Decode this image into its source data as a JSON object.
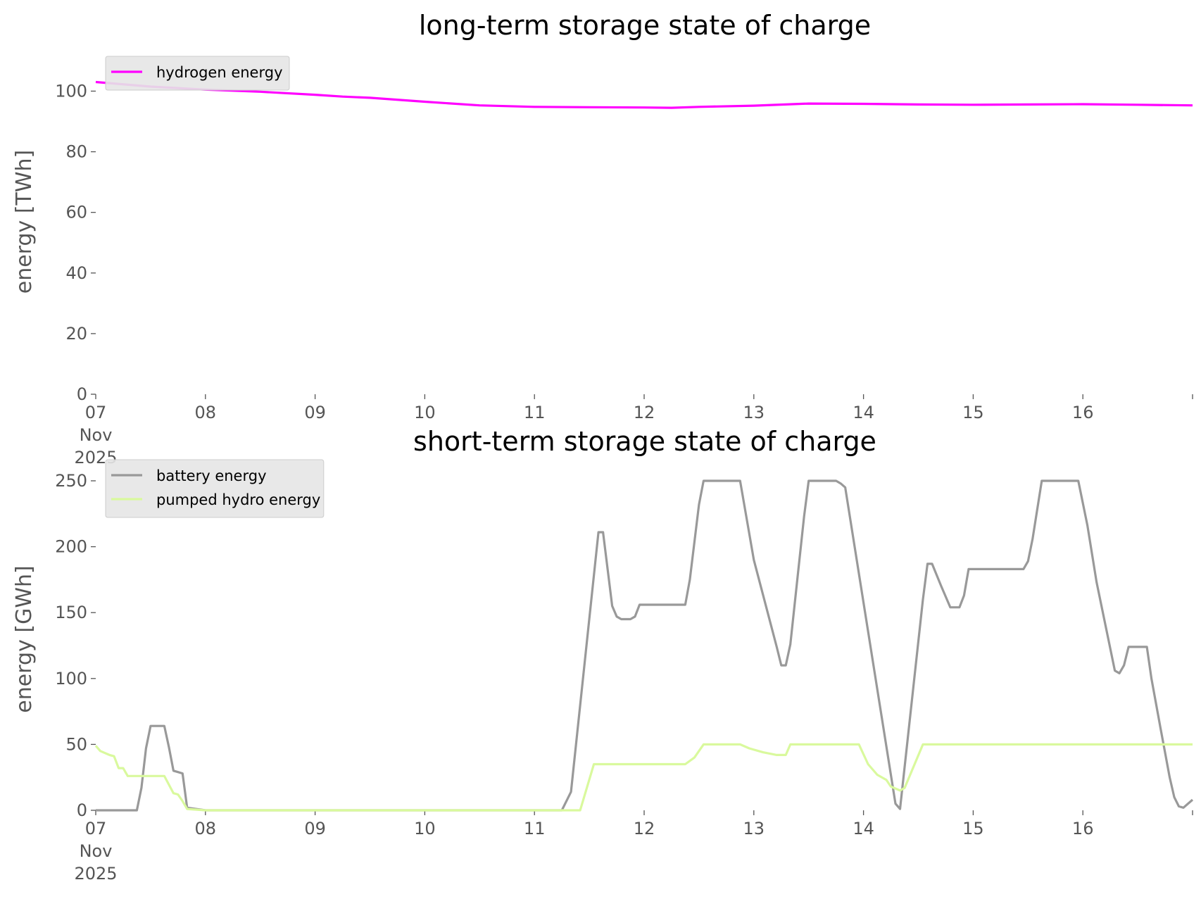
{
  "chart_data": [
    {
      "type": "line",
      "title": "long-term storage state of charge",
      "ylabel": "energy [TWh]",
      "xlabel": "",
      "ylim": [
        0,
        108
      ],
      "xlim": [
        "2025-11-07 00:00",
        "2025-11-17 00:00"
      ],
      "yticks": [
        "0",
        "20",
        "40",
        "60",
        "80",
        "100"
      ],
      "xticks": [
        {
          "lines": [
            "07",
            "Nov",
            "2025"
          ]
        },
        {
          "lines": [
            "08"
          ]
        },
        {
          "lines": [
            "09"
          ]
        },
        {
          "lines": [
            "10"
          ]
        },
        {
          "lines": [
            "11"
          ]
        },
        {
          "lines": [
            "12"
          ]
        },
        {
          "lines": [
            "13"
          ]
        },
        {
          "lines": [
            "14"
          ]
        },
        {
          "lines": [
            "15"
          ]
        },
        {
          "lines": [
            "16"
          ]
        }
      ],
      "grid": false,
      "legend_position": "top-left",
      "series": [
        {
          "name": "hydrogen energy",
          "color": "#ff00ff",
          "points": [
            [
              "2025-11-07 00:00",
              103.0
            ],
            [
              "2025-11-07 12:00",
              101.5
            ],
            [
              "2025-11-08 00:00",
              100.5
            ],
            [
              "2025-11-08 12:00",
              99.8
            ],
            [
              "2025-11-09 00:00",
              98.8
            ],
            [
              "2025-11-09 06:00",
              98.2
            ],
            [
              "2025-11-09 12:00",
              97.8
            ],
            [
              "2025-11-10 00:00",
              96.5
            ],
            [
              "2025-11-10 12:00",
              95.3
            ],
            [
              "2025-11-11 00:00",
              94.8
            ],
            [
              "2025-11-11 12:00",
              94.7
            ],
            [
              "2025-11-12 00:00",
              94.6
            ],
            [
              "2025-11-12 06:00",
              94.5
            ],
            [
              "2025-11-12 12:00",
              94.8
            ],
            [
              "2025-11-13 00:00",
              95.2
            ],
            [
              "2025-11-13 12:00",
              95.9
            ],
            [
              "2025-11-14 00:00",
              95.8
            ],
            [
              "2025-11-14 12:00",
              95.6
            ],
            [
              "2025-11-15 00:00",
              95.5
            ],
            [
              "2025-11-15 12:00",
              95.6
            ],
            [
              "2025-11-16 00:00",
              95.7
            ],
            [
              "2025-11-16 12:00",
              95.5
            ],
            [
              "2025-11-17 00:00",
              95.3
            ]
          ]
        }
      ]
    },
    {
      "type": "line",
      "title": "short-term storage state of charge",
      "ylabel": "energy [GWh]",
      "xlabel": "",
      "ylim": [
        0,
        258
      ],
      "xlim": [
        "2025-11-07 00:00",
        "2025-11-17 00:00"
      ],
      "yticks": [
        "0",
        "50",
        "100",
        "150",
        "200",
        "250"
      ],
      "xticks": [
        {
          "lines": [
            "07",
            "Nov",
            "2025"
          ]
        },
        {
          "lines": [
            "08"
          ]
        },
        {
          "lines": [
            "09"
          ]
        },
        {
          "lines": [
            "10"
          ]
        },
        {
          "lines": [
            "11"
          ]
        },
        {
          "lines": [
            "12"
          ]
        },
        {
          "lines": [
            "13"
          ]
        },
        {
          "lines": [
            "14"
          ]
        },
        {
          "lines": [
            "15"
          ]
        },
        {
          "lines": [
            "16"
          ]
        }
      ],
      "grid": false,
      "legend_position": "top-left",
      "series": [
        {
          "name": "battery energy",
          "color": "#999999",
          "points": [
            [
              "2025-11-07 00:00",
              0
            ],
            [
              "2025-11-07 09:00",
              0
            ],
            [
              "2025-11-07 10:00",
              17
            ],
            [
              "2025-11-07 11:00",
              47
            ],
            [
              "2025-11-07 12:00",
              64
            ],
            [
              "2025-11-07 15:00",
              64
            ],
            [
              "2025-11-07 16:00",
              48
            ],
            [
              "2025-11-07 17:00",
              30
            ],
            [
              "2025-11-07 19:00",
              28
            ],
            [
              "2025-11-07 20:00",
              2
            ],
            [
              "2025-11-08 00:00",
              0
            ],
            [
              "2025-11-11 06:00",
              0
            ],
            [
              "2025-11-11 08:00",
              14
            ],
            [
              "2025-11-11 14:00",
              211
            ],
            [
              "2025-11-11 15:00",
              211
            ],
            [
              "2025-11-11 17:00",
              155
            ],
            [
              "2025-11-11 18:00",
              147
            ],
            [
              "2025-11-11 19:00",
              145
            ],
            [
              "2025-11-11 21:00",
              145
            ],
            [
              "2025-11-11 22:00",
              147
            ],
            [
              "2025-11-11 23:00",
              156
            ],
            [
              "2025-11-12 09:00",
              156
            ],
            [
              "2025-11-12 10:00",
              175
            ],
            [
              "2025-11-12 12:00",
              232
            ],
            [
              "2025-11-12 13:00",
              250
            ],
            [
              "2025-11-12 21:00",
              250
            ],
            [
              "2025-11-13 00:00",
              190
            ],
            [
              "2025-11-13 05:00",
              124
            ],
            [
              "2025-11-13 06:00",
              110
            ],
            [
              "2025-11-13 07:00",
              110
            ],
            [
              "2025-11-13 08:00",
              126
            ],
            [
              "2025-11-13 11:00",
              223
            ],
            [
              "2025-11-13 12:00",
              250
            ],
            [
              "2025-11-13 18:00",
              250
            ],
            [
              "2025-11-13 19:00",
              248
            ],
            [
              "2025-11-13 20:00",
              245
            ],
            [
              "2025-11-14 07:00",
              5
            ],
            [
              "2025-11-14 08:00",
              1
            ],
            [
              "2025-11-14 13:00",
              160
            ],
            [
              "2025-11-14 14:00",
              187
            ],
            [
              "2025-11-14 15:00",
              187
            ],
            [
              "2025-11-14 17:00",
              170
            ],
            [
              "2025-11-14 19:00",
              154
            ],
            [
              "2025-11-14 21:00",
              154
            ],
            [
              "2025-11-14 22:00",
              163
            ],
            [
              "2025-11-14 23:00",
              183
            ],
            [
              "2025-11-15 11:00",
              183
            ],
            [
              "2025-11-15 12:00",
              189
            ],
            [
              "2025-11-15 13:00",
              206
            ],
            [
              "2025-11-15 15:00",
              250
            ],
            [
              "2025-11-15 23:00",
              250
            ],
            [
              "2025-11-16 01:00",
              216
            ],
            [
              "2025-11-16 03:00",
              173
            ],
            [
              "2025-11-16 07:00",
              106
            ],
            [
              "2025-11-16 08:00",
              104
            ],
            [
              "2025-11-16 09:00",
              110
            ],
            [
              "2025-11-16 10:00",
              124
            ],
            [
              "2025-11-16 14:00",
              124
            ],
            [
              "2025-11-16 15:00",
              100
            ],
            [
              "2025-11-16 17:00",
              62
            ],
            [
              "2025-11-16 19:00",
              25
            ],
            [
              "2025-11-16 20:00",
              10
            ],
            [
              "2025-11-16 21:00",
              3
            ],
            [
              "2025-11-16 22:00",
              2
            ],
            [
              "2025-11-17 00:00",
              8
            ]
          ]
        },
        {
          "name": "pumped hydro energy",
          "color": "#d9f99d",
          "points": [
            [
              "2025-11-07 00:00",
              49
            ],
            [
              "2025-11-07 01:00",
              45
            ],
            [
              "2025-11-07 03:00",
              42
            ],
            [
              "2025-11-07 04:00",
              41
            ],
            [
              "2025-11-07 05:00",
              32
            ],
            [
              "2025-11-07 06:00",
              32
            ],
            [
              "2025-11-07 07:00",
              26
            ],
            [
              "2025-11-07 15:00",
              26
            ],
            [
              "2025-11-07 17:00",
              13
            ],
            [
              "2025-11-07 18:00",
              12
            ],
            [
              "2025-11-07 19:00",
              7
            ],
            [
              "2025-11-07 20:00",
              1
            ],
            [
              "2025-11-08 00:00",
              0
            ],
            [
              "2025-11-11 10:00",
              0
            ],
            [
              "2025-11-11 13:00",
              35
            ],
            [
              "2025-11-12 09:00",
              35
            ],
            [
              "2025-11-12 11:00",
              40
            ],
            [
              "2025-11-12 13:00",
              50
            ],
            [
              "2025-11-12 21:00",
              50
            ],
            [
              "2025-11-12 23:00",
              47
            ],
            [
              "2025-11-13 02:00",
              44
            ],
            [
              "2025-11-13 05:00",
              42
            ],
            [
              "2025-11-13 07:00",
              42
            ],
            [
              "2025-11-13 08:00",
              50
            ],
            [
              "2025-11-13 23:00",
              50
            ],
            [
              "2025-11-14 01:00",
              35
            ],
            [
              "2025-11-14 03:00",
              27
            ],
            [
              "2025-11-14 05:00",
              23
            ],
            [
              "2025-11-14 06:00",
              18
            ],
            [
              "2025-11-14 08:00",
              15
            ],
            [
              "2025-11-14 09:00",
              17
            ],
            [
              "2025-11-14 13:00",
              50
            ],
            [
              "2025-11-17 00:00",
              50
            ]
          ]
        }
      ]
    }
  ]
}
